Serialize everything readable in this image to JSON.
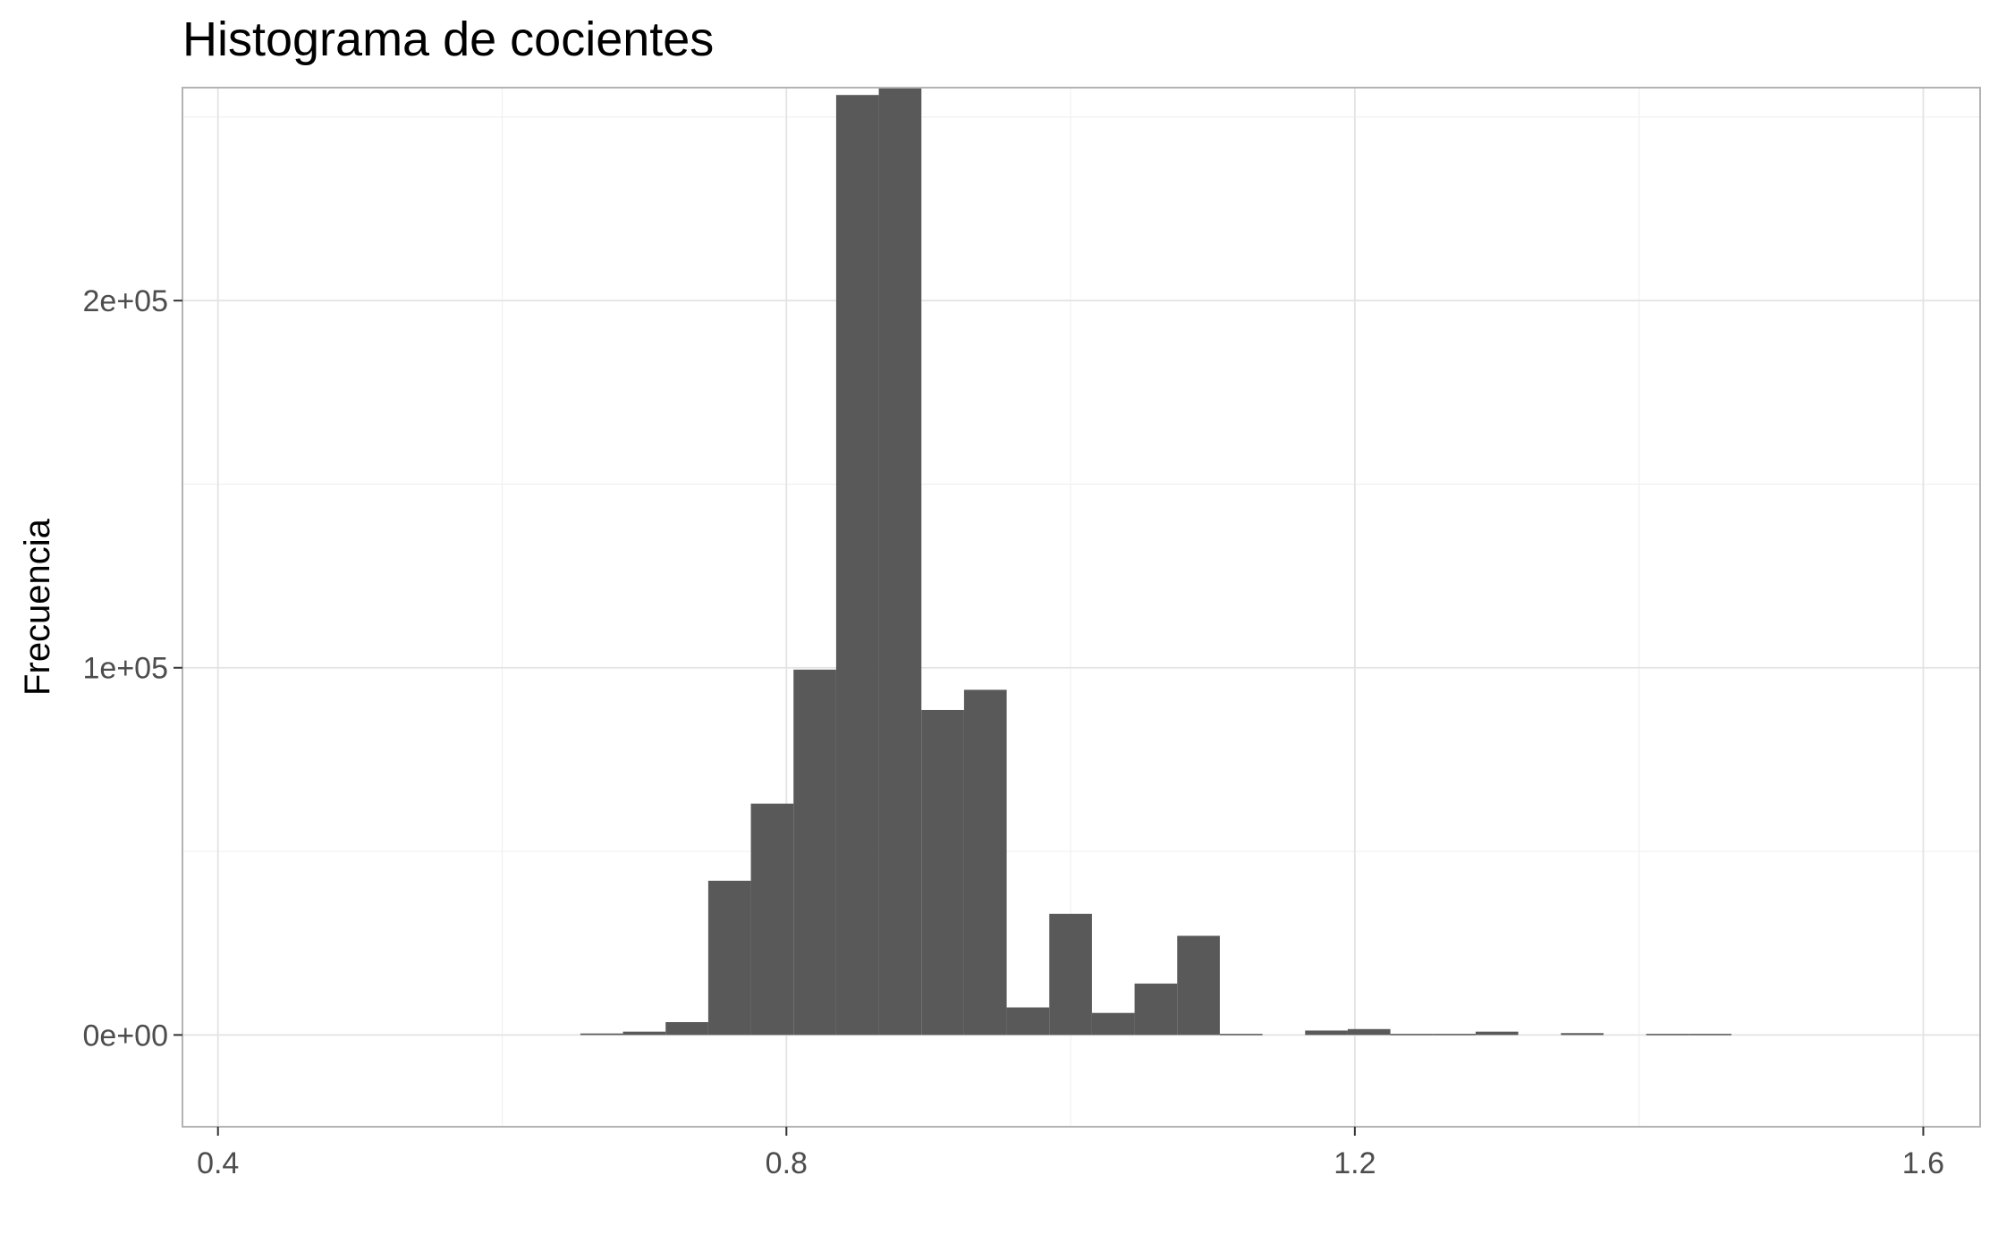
{
  "chart_data": {
    "type": "bar",
    "title": "Histograma de cocientes",
    "xlabel": "",
    "ylabel": "Frecuencia",
    "xlim": [
      0.375,
      1.64
    ],
    "ylim": [
      -25000,
      258000
    ],
    "x_ticks": [
      0.4,
      0.8,
      1.2,
      1.6
    ],
    "x_tick_labels": [
      "0.4",
      "0.8",
      "1.2",
      "1.6"
    ],
    "y_ticks": [
      0,
      100000,
      200000
    ],
    "y_tick_labels": [
      "0e+00",
      "1e+05",
      "2e+05"
    ],
    "x_minor_gridlines": [
      0.6,
      1.0,
      1.4
    ],
    "y_minor_gridlines": [
      50000,
      150000,
      250000
    ],
    "grid": true,
    "bin_width": 0.03,
    "bin_start": 0.655,
    "values": [
      400,
      900,
      3500,
      42000,
      63000,
      99500,
      256000,
      258000,
      88500,
      94000,
      7500,
      33000,
      6000,
      14000,
      27000,
      300,
      0,
      1200,
      1600,
      300,
      300,
      900,
      0,
      500,
      0,
      300,
      300
    ],
    "bar_color": "#595959"
  }
}
